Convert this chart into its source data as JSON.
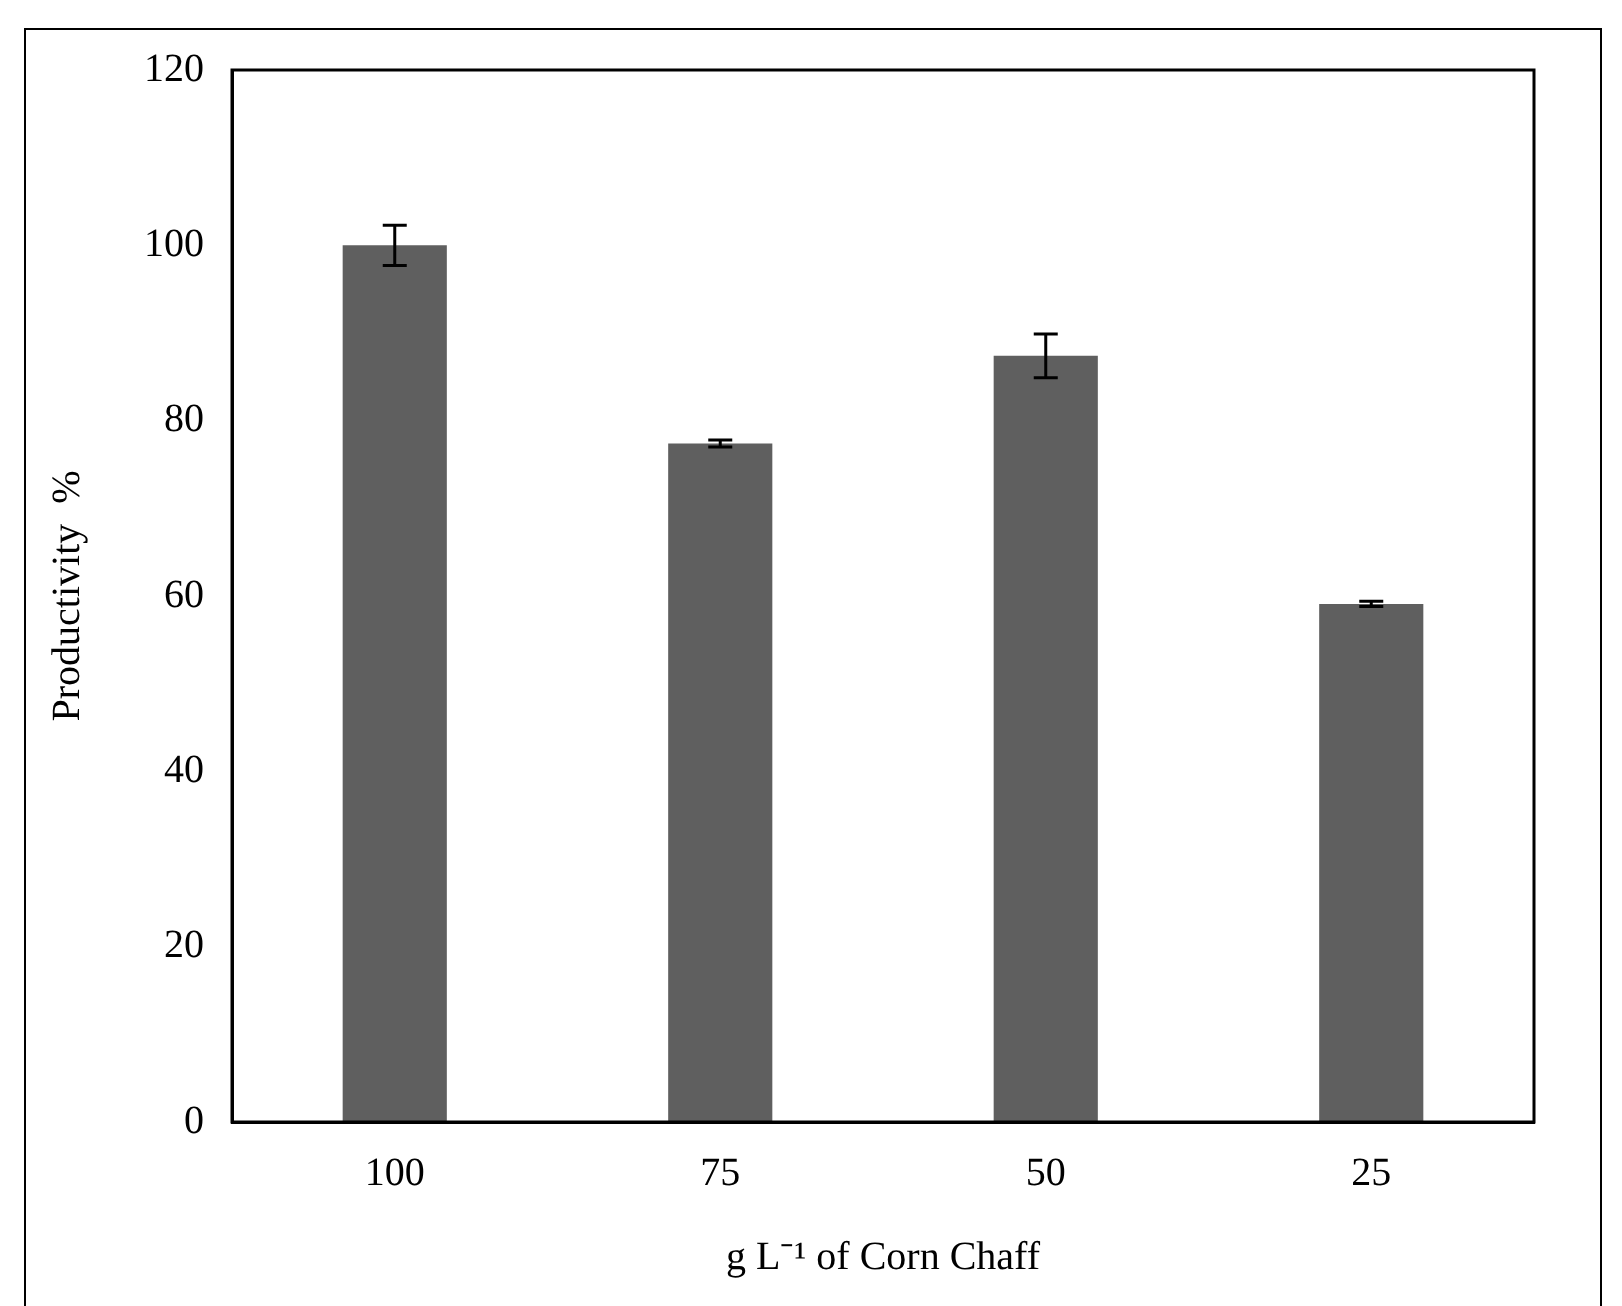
{
  "chart_data": {
    "type": "bar",
    "xlabel": "g L⁻¹ of Corn Chaff",
    "ylabel": "Productivity  %",
    "categories": [
      "100",
      "75",
      "50",
      "25"
    ],
    "values": [
      100,
      77.4,
      87.4,
      59.1
    ],
    "errors": [
      2.3,
      0.4,
      2.5,
      0.3
    ],
    "color": "#5f5f5f",
    "ylim": [
      0,
      120
    ],
    "yticks": [
      0,
      20,
      40,
      60,
      80,
      100,
      120
    ],
    "grid": false
  }
}
